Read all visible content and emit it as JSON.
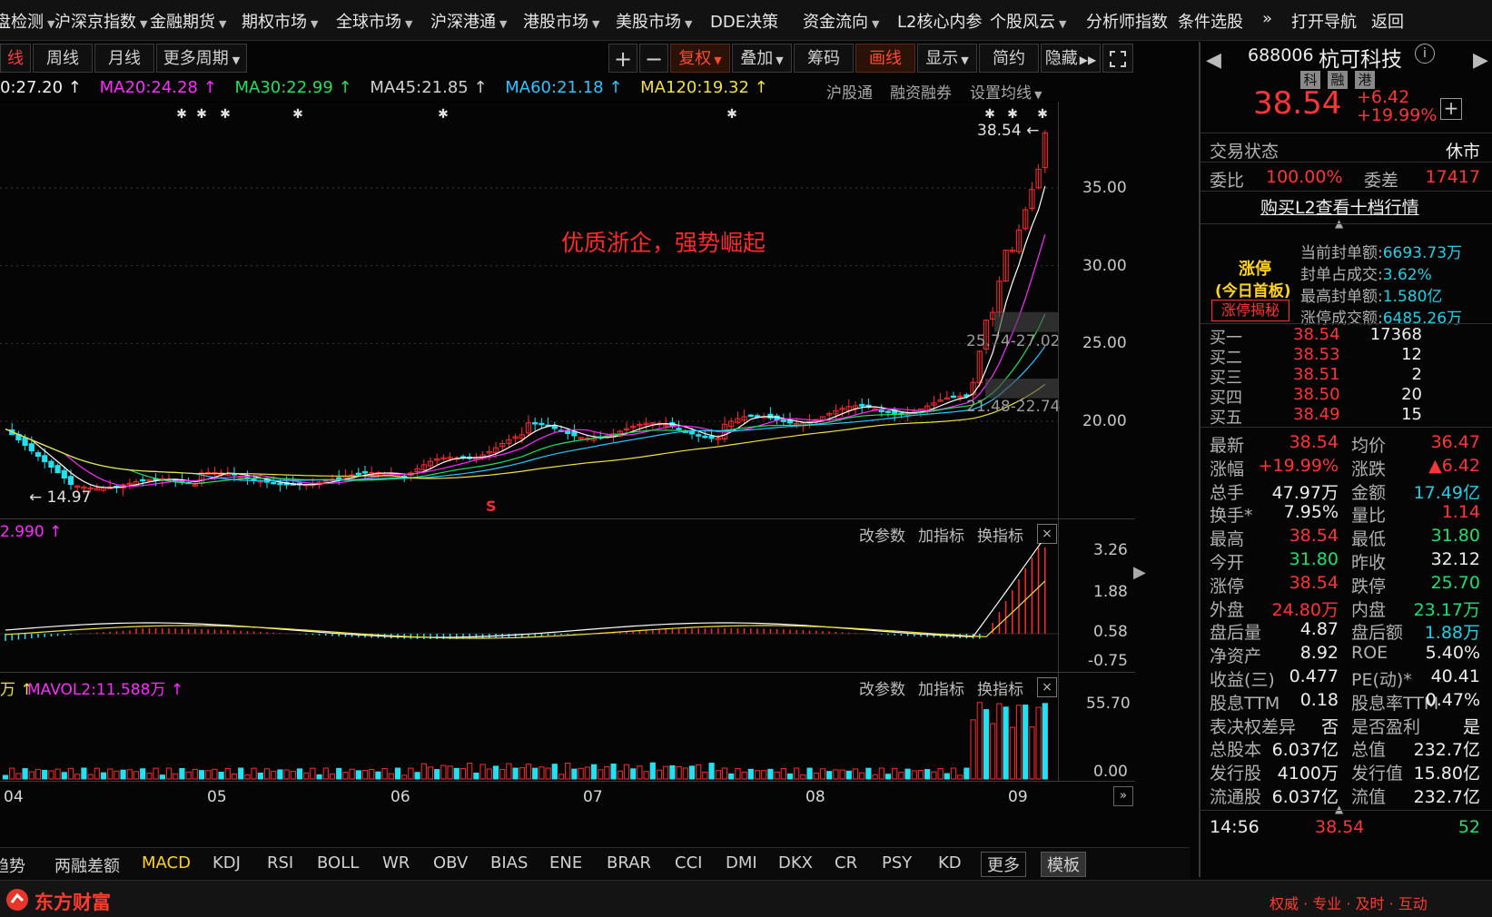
{
  "nav": {
    "items": [
      {
        "label": "盘检测",
        "caret": true
      },
      {
        "label": "沪深京指数",
        "caret": true
      },
      {
        "label": "金融期货",
        "caret": true
      },
      {
        "label": "期权市场",
        "caret": true
      },
      {
        "label": "全球市场",
        "caret": true
      },
      {
        "label": "沪深港通",
        "caret": true
      },
      {
        "label": "港股市场",
        "caret": true
      },
      {
        "label": "美股市场",
        "caret": true
      },
      {
        "label": "DDE决策",
        "caret": false
      },
      {
        "label": "资金流向",
        "caret": true
      },
      {
        "label": "L2核心内参",
        "caret": false
      },
      {
        "label": "个股风云",
        "caret": true
      },
      {
        "label": "分析师指数",
        "caret": false
      },
      {
        "label": "条件选股",
        "caret": false
      },
      {
        "label": "»",
        "caret": false
      },
      {
        "label": "打开导航",
        "caret": false
      },
      {
        "label": "返回",
        "caret": false
      }
    ]
  },
  "toolbar": {
    "periods": [
      "线",
      "周线",
      "月线",
      "更多周期"
    ],
    "plus": "+",
    "minus": "−",
    "buttons": [
      "复权",
      "叠加",
      "筹码",
      "画线",
      "显示",
      "简约",
      "隐藏"
    ]
  },
  "ma": {
    "ma10": "0:27.20 ↑",
    "ma20": "MA20:24.28 ↑",
    "ma30": "MA30:22.99 ↑",
    "ma45": "MA45:21.85 ↑",
    "ma60": "MA60:21.18 ↑",
    "ma120": "MA120:19.32 ↑",
    "right": [
      "沪股通",
      "融资融券",
      "设置均线"
    ]
  },
  "chart": {
    "price_ticks": [
      "35.00",
      "30.00",
      "25.00",
      "20.00"
    ],
    "high_label": "38.54",
    "low_label": "14.97",
    "chip_high": "25.74-27.02",
    "chip_low": "21.48-22.74",
    "annotation": "优质浙企，强势崛起",
    "signal": "S",
    "colors": {
      "up": "#ff2a2a",
      "down": "#22e0f0",
      "ma10": "#ffffff",
      "ma20": "#ff2aff",
      "ma30": "#22e05a",
      "ma60": "#29c6ff",
      "ma120": "#f0e040"
    }
  },
  "macd_panel": {
    "header": "2.990 ↑",
    "ticks": [
      "3.26",
      "1.88",
      "0.58",
      "-0.75"
    ],
    "actions": [
      "改参数",
      "加指标",
      "换指标"
    ]
  },
  "vol_panel": {
    "header_left": "万 ↑",
    "header_mavol": "MAVOL2:11.588万 ↑",
    "ticks": [
      "55.70",
      "0.00"
    ],
    "actions": [
      "改参数",
      "加指标",
      "换指标"
    ]
  },
  "months": [
    "04",
    "05",
    "06",
    "07",
    "08",
    "09"
  ],
  "indicators": [
    "趋势",
    "两融差额",
    "MACD",
    "KDJ",
    "RSI",
    "BOLL",
    "WR",
    "OBV",
    "BIAS",
    "ENE",
    "BRAR",
    "CCI",
    "DMI",
    "DKX",
    "CR",
    "PSY",
    "KD",
    "更多",
    "模板"
  ],
  "footer": {
    "brand": "东方财富",
    "slogan": "权威 · 专业 · 及时 · 互动"
  },
  "quote": {
    "code": "688006",
    "name": "杭可科技",
    "tags": [
      "科",
      "融",
      "港"
    ],
    "price": "38.54",
    "change": "+6.42",
    "pct": "+19.99%",
    "status_label": "交易状态",
    "status_value": "休市",
    "wb_label": "委比",
    "wb_value": "100.00%",
    "wc_label": "委差",
    "wc_value": "17417",
    "l2_link": "购买L2查看十档行情",
    "limit_title": "涨停",
    "limit_sub": "(今日首板)",
    "limit_btn": "涨停揭秘",
    "limit_info": [
      {
        "k": "当前封单额:",
        "v": "6693.73万"
      },
      {
        "k": "封单占成交:",
        "v": "3.62%"
      },
      {
        "k": "最高封单额:",
        "v": "1.580亿"
      },
      {
        "k": "涨停成交额:",
        "v": "6485.26万"
      }
    ],
    "bids": [
      {
        "label": "买一",
        "price": "38.54",
        "vol": "17368"
      },
      {
        "label": "买二",
        "price": "38.53",
        "vol": "12"
      },
      {
        "label": "买三",
        "price": "38.51",
        "vol": "2"
      },
      {
        "label": "买四",
        "price": "38.50",
        "vol": "20"
      },
      {
        "label": "买五",
        "price": "38.49",
        "vol": "15"
      }
    ],
    "stats": [
      {
        "l": "最新",
        "lv": "38.54",
        "lc": "red",
        "r": "均价",
        "rv": "36.47",
        "rc": "red"
      },
      {
        "l": "涨幅",
        "lv": "+19.99%",
        "lc": "red",
        "r": "涨跌",
        "rv": "▲6.42",
        "rc": "red"
      },
      {
        "l": "总手",
        "lv": "47.97万",
        "lc": "white",
        "r": "金额",
        "rv": "17.49亿",
        "rc": "cyan"
      },
      {
        "l": "换手*",
        "lv": "7.95%",
        "lc": "white",
        "r": "量比",
        "rv": "1.14",
        "rc": "red"
      },
      {
        "l": "最高",
        "lv": "38.54",
        "lc": "red",
        "r": "最低",
        "rv": "31.80",
        "rc": "green"
      },
      {
        "l": "今开",
        "lv": "31.80",
        "lc": "green",
        "r": "昨收",
        "rv": "32.12",
        "rc": "white"
      },
      {
        "l": "涨停",
        "lv": "38.54",
        "lc": "red",
        "r": "跌停",
        "rv": "25.70",
        "rc": "green"
      },
      {
        "l": "外盘",
        "lv": "24.80万",
        "lc": "red",
        "r": "内盘",
        "rv": "23.17万",
        "rc": "green"
      },
      {
        "l": "盘后量",
        "lv": "4.87",
        "lc": "white",
        "r": "盘后额",
        "rv": "1.88万",
        "rc": "cyan"
      },
      {
        "l": "净资产",
        "lv": "8.92",
        "lc": "white",
        "r": "ROE",
        "rv": "5.40%",
        "rc": "white"
      },
      {
        "l": "收益(三)",
        "lv": "0.477",
        "lc": "white",
        "r": "PE(动)*",
        "rv": "40.41",
        "rc": "white"
      },
      {
        "l": "股息TTM",
        "lv": "0.18",
        "lc": "white",
        "r": "股息率TTM",
        "rv": "0.47%",
        "rc": "white"
      },
      {
        "l": "表决权差异",
        "lv": "否",
        "lc": "white",
        "r": "是否盈利",
        "rv": "是",
        "rc": "white"
      },
      {
        "l": "总股本",
        "lv": "6.037亿",
        "lc": "white",
        "r": "总值",
        "rv": "232.7亿",
        "rc": "white"
      },
      {
        "l": "发行股",
        "lv": "4100万",
        "lc": "white",
        "r": "发行值",
        "rv": "15.80亿",
        "rc": "white"
      },
      {
        "l": "流通股",
        "lv": "6.037亿",
        "lc": "white",
        "r": "流值",
        "rv": "232.7亿",
        "rc": "white"
      }
    ],
    "tick_time": "14:56",
    "tick_price": "38.54",
    "tick_vol": "52"
  }
}
